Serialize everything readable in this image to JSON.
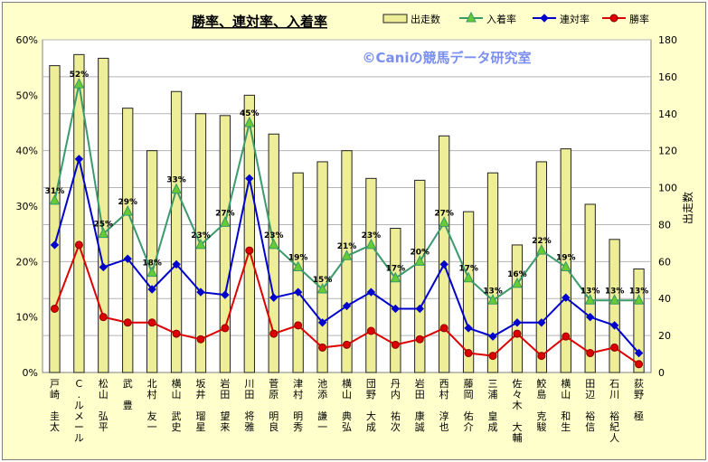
{
  "chart_data": {
    "type": "bar",
    "title": "勝率、連対率、入着率",
    "watermark": "©Caniの競馬データ研究室",
    "y2label": "出走数",
    "ylim": [
      0,
      60
    ],
    "y2lim": [
      0,
      180
    ],
    "yticks": [
      "0%",
      "10%",
      "20%",
      "30%",
      "40%",
      "50%",
      "60%"
    ],
    "y2ticks": [
      "0",
      "20",
      "40",
      "60",
      "80",
      "100",
      "120",
      "140",
      "160",
      "180"
    ],
    "legend_position": "top-right",
    "grid": true,
    "categories": [
      "戸崎 圭太",
      "C.ルメール",
      "松山 弘平",
      "武 豊",
      "北村 友一",
      "横山 武史",
      "坂井 瑠星",
      "岩田 望来",
      "川田 将雅",
      "菅原 明良",
      "津村 明秀",
      "池添 謙一",
      "横山 典弘",
      "団野 大成",
      "丹内 祐次",
      "岩田 康誠",
      "西村 淳也",
      "藤岡 佑介",
      "三浦 皇成",
      "佐々木 大輔",
      "鮫島 克駿",
      "横山 和生",
      "田辺 裕信",
      "石川 裕紀人",
      "荻野 極"
    ],
    "series": [
      {
        "name": "出走数",
        "type": "bar",
        "axis": "right",
        "color": "#eeee99",
        "values": [
          166,
          172,
          170,
          143,
          120,
          152,
          140,
          139,
          150,
          129,
          108,
          114,
          120,
          105,
          78,
          104,
          128,
          87,
          108,
          69,
          114,
          121,
          91,
          72,
          56
        ]
      },
      {
        "name": "入着率",
        "type": "line",
        "axis": "left",
        "color": "#3a9a6a",
        "marker": "triangle",
        "values": [
          31,
          52,
          25,
          29,
          18,
          33,
          23,
          27,
          45,
          23,
          19,
          15,
          21,
          23,
          17,
          20,
          27,
          17,
          13,
          16,
          22,
          19,
          13,
          13,
          13
        ],
        "labels": [
          "31%",
          "52%",
          "25%",
          "29%",
          "18%",
          "33%",
          "23%",
          "27%",
          "45%",
          "23%",
          "19%",
          "15%",
          "21%",
          "23%",
          "17%",
          "20%",
          "27%",
          "17%",
          "13%",
          "16%",
          "22%",
          "19%",
          "13%",
          "13%",
          "13%"
        ]
      },
      {
        "name": "連対率",
        "type": "line",
        "axis": "left",
        "color": "#0000cc",
        "marker": "diamond",
        "values": [
          23,
          38.5,
          19,
          20.5,
          15,
          19.5,
          14.5,
          14,
          35,
          13.5,
          14.5,
          9,
          12,
          14.5,
          11.5,
          11.5,
          19.5,
          8,
          6.5,
          9,
          9,
          13.5,
          10,
          8.5,
          3.5
        ]
      },
      {
        "name": "勝率",
        "type": "line",
        "axis": "left",
        "color": "#dd0000",
        "marker": "circle",
        "values": [
          11.5,
          23,
          10,
          9,
          9,
          7,
          6,
          8,
          22,
          7,
          8.5,
          4.5,
          5,
          7.5,
          5,
          6,
          8,
          3.5,
          3,
          7,
          3,
          6.5,
          3.5,
          4.5,
          1.5
        ]
      }
    ]
  }
}
